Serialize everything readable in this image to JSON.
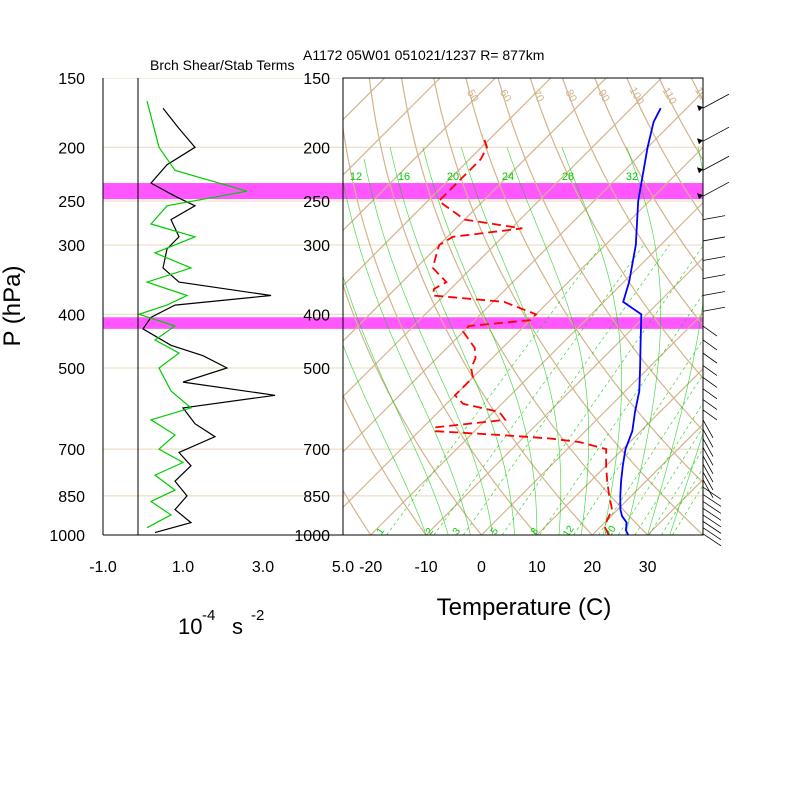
{
  "header": {
    "left_title": "Brch Shear/Stab Terms",
    "right_title": "A1172 05W01 051021/1237 R= 877km"
  },
  "ylabel": "P (hPa)",
  "pressure_labels": [
    "150",
    "200",
    "250",
    "300",
    "400",
    "500",
    "700",
    "850",
    "1000"
  ],
  "left_panel": {
    "xticks": [
      "-1.0",
      "1.0",
      "3.0",
      "5.0"
    ],
    "unit_base": "10",
    "unit_exp": "-4",
    "unit_s": "s",
    "unit_exp2": "-2"
  },
  "right_panel": {
    "xticks": [
      "-20",
      "-10",
      "0",
      "10",
      "20",
      "30"
    ],
    "xlabel": "Temperature (C)",
    "theta_labels": [
      "50",
      "60",
      "70",
      "80",
      "90",
      "100",
      "110",
      "120",
      "130",
      "140",
      "150"
    ],
    "mixing_top_labels": [
      "12",
      "16",
      "20",
      "24",
      "28",
      "32"
    ],
    "mixing_bottom_labels": [
      "1",
      "2",
      "3",
      "5",
      "8",
      "12",
      "20"
    ]
  },
  "colors": {
    "highlight": "#ff44ff",
    "temperature": "#0000ff",
    "dewpoint": "#ff0000",
    "shear_term": "#000000",
    "stab_term": "#00cc00",
    "skew_grid": "#d2b48c",
    "mixing_ratio": "#00cc00"
  },
  "chart_data": [
    {
      "type": "line",
      "title": "Brch Shear/Stab Terms",
      "xlabel": "10-4 s -2",
      "ylabel": "P (hPa)",
      "xlim": [
        -1.0,
        5.0
      ],
      "ylim_hPa": [
        1000,
        150
      ],
      "highlight_bands_hPa": [
        [
          232,
          248
        ],
        [
          405,
          425
        ]
      ],
      "series": [
        {
          "color": "#000000",
          "points": [
            [
              0.5,
              170
            ],
            [
              0.9,
              185
            ],
            [
              1.3,
              200
            ],
            [
              0.6,
              215
            ],
            [
              0.2,
              232
            ],
            [
              0.8,
              245
            ],
            [
              1.3,
              255
            ],
            [
              0.7,
              270
            ],
            [
              0.9,
              290
            ],
            [
              0.6,
              305
            ],
            [
              0.5,
              330
            ],
            [
              0.9,
              350
            ],
            [
              3.2,
              370
            ],
            [
              0.8,
              385
            ],
            [
              0.2,
              405
            ],
            [
              0.0,
              425
            ],
            [
              0.7,
              455
            ],
            [
              1.5,
              475
            ],
            [
              2.1,
              500
            ],
            [
              1.0,
              530
            ],
            [
              3.3,
              560
            ],
            [
              1.0,
              590
            ],
            [
              1.3,
              630
            ],
            [
              1.8,
              665
            ],
            [
              0.9,
              710
            ],
            [
              1.2,
              750
            ],
            [
              0.8,
              800
            ],
            [
              1.1,
              850
            ],
            [
              0.8,
              900
            ],
            [
              1.2,
              950
            ],
            [
              0.3,
              990
            ]
          ]
        },
        {
          "color": "#00cc00",
          "points": [
            [
              0.1,
              165
            ],
            [
              0.4,
              200
            ],
            [
              0.8,
              220
            ],
            [
              2.6,
              240
            ],
            [
              0.6,
              255
            ],
            [
              0.2,
              275
            ],
            [
              1.3,
              290
            ],
            [
              0.3,
              310
            ],
            [
              1.2,
              330
            ],
            [
              0.1,
              350
            ],
            [
              1.1,
              370
            ],
            [
              0.6,
              385
            ],
            [
              -0.1,
              400
            ],
            [
              0.8,
              420
            ],
            [
              0.3,
              445
            ],
            [
              0.9,
              470
            ],
            [
              0.4,
              500
            ],
            [
              0.7,
              550
            ],
            [
              1.2,
              590
            ],
            [
              0.2,
              620
            ],
            [
              0.8,
              660
            ],
            [
              0.4,
              700
            ],
            [
              1.0,
              740
            ],
            [
              0.3,
              780
            ],
            [
              0.8,
              830
            ],
            [
              0.2,
              870
            ],
            [
              0.7,
              920
            ],
            [
              0.1,
              970
            ]
          ]
        }
      ]
    },
    {
      "type": "line",
      "title": "A1172 05W01 051021/1237 R= 877km",
      "xlabel": "Temperature (C)",
      "ylabel": "P (hPa)",
      "xlim": [
        -25,
        40
      ],
      "ylim_hPa": [
        1000,
        150
      ],
      "series": [
        {
          "name": "temperature",
          "color": "#0000ff",
          "points_hPa_degC": [
            [
              1000,
              26.5
            ],
            [
              980,
              25.2
            ],
            [
              950,
              24.0
            ],
            [
              925,
              22.0
            ],
            [
              900,
              20.5
            ],
            [
              850,
              18.0
            ],
            [
              800,
              15.5
            ],
            [
              750,
              13.0
            ],
            [
              700,
              10.5
            ],
            [
              650,
              8.5
            ],
            [
              600,
              5.5
            ],
            [
              550,
              2.5
            ],
            [
              500,
              -1.5
            ],
            [
              450,
              -6.0
            ],
            [
              400,
              -11.0
            ],
            [
              380,
              -16.5
            ],
            [
              350,
              -19.0
            ],
            [
              300,
              -24.5
            ],
            [
              250,
              -32.0
            ],
            [
              200,
              -40.0
            ],
            [
              180,
              -43.5
            ],
            [
              170,
              -44.7
            ]
          ]
        },
        {
          "name": "dewpoint",
          "color": "#ff0000",
          "points_hPa_degC": [
            [
              1000,
              23.0
            ],
            [
              970,
              21.0
            ],
            [
              940,
              20.0
            ],
            [
              900,
              19.0
            ],
            [
              850,
              16.0
            ],
            [
              800,
              13.0
            ],
            [
              750,
              10.0
            ],
            [
              700,
              7.0
            ],
            [
              690,
              4.0
            ],
            [
              680,
              1.0
            ],
            [
              670,
              -5.0
            ],
            [
              660,
              -15.0
            ],
            [
              650,
              -27.0
            ],
            [
              640,
              -28.0
            ],
            [
              620,
              -16.5
            ],
            [
              600,
              -19.0
            ],
            [
              580,
              -27.0
            ],
            [
              560,
              -30.0
            ],
            [
              520,
              -30.0
            ],
            [
              500,
              -32.0
            ],
            [
              480,
              -33.0
            ],
            [
              460,
              -35.0
            ],
            [
              430,
              -40.0
            ],
            [
              420,
              -40.0
            ],
            [
              410,
              -30.0
            ],
            [
              400,
              -30.0
            ],
            [
              380,
              -38.0
            ],
            [
              370,
              -52.0
            ],
            [
              360,
              -53.0
            ],
            [
              350,
              -52.0
            ],
            [
              330,
              -57.0
            ],
            [
              310,
              -59.0
            ],
            [
              300,
              -60.0
            ],
            [
              290,
              -59.0
            ],
            [
              280,
              -48.0
            ],
            [
              270,
              -60.0
            ],
            [
              250,
              -68.0
            ],
            [
              230,
              -68.0
            ],
            [
              210,
              -68.0
            ],
            [
              200,
              -69.0
            ],
            [
              190,
              -72.0
            ]
          ]
        }
      ]
    }
  ]
}
